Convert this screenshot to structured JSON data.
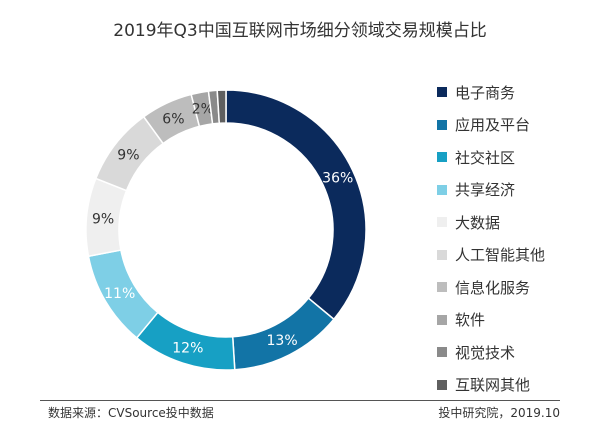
{
  "chart_data": {
    "type": "pie",
    "donut": true,
    "title": "2019年Q3中国互联网市场细分领域交易规模占比",
    "categories": [
      "电子商务",
      "应用及平台",
      "社交社区",
      "共享经济",
      "大数据",
      "人工智能其他",
      "信息化服务",
      "软件",
      "视觉技术",
      "互联网其他"
    ],
    "values": [
      36,
      13,
      12,
      11,
      9,
      9,
      6,
      2,
      1,
      1
    ],
    "data_labels": [
      "36%",
      "13%",
      "12%",
      "11%",
      "9%",
      "9%",
      "6%",
      "2%",
      "",
      ""
    ],
    "colors": [
      "#0b2a5c",
      "#1274a6",
      "#17a0c4",
      "#7ecfe6",
      "#efefef",
      "#d9d9d9",
      "#bdbdbd",
      "#a6a6a6",
      "#8a8a8a",
      "#5f5f5f"
    ],
    "label_colors": [
      "#fff",
      "#fff",
      "#fff",
      "#fff",
      "#333",
      "#333",
      "#333",
      "#333",
      "#333",
      "#333"
    ],
    "legend_position": "right"
  },
  "footer": {
    "source": "数据来源：CVSource投中数据",
    "org": "投中研究院，2019.10"
  }
}
